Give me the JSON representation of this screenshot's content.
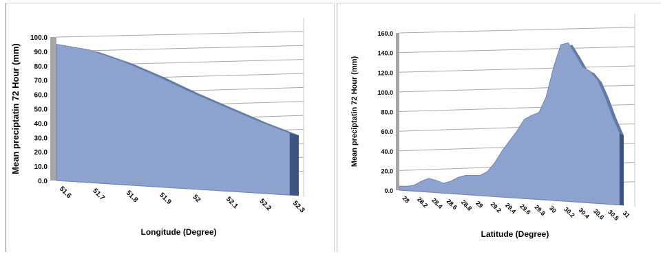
{
  "chart_data": [
    {
      "type": "area",
      "xlabel": "Longitude (Degree)",
      "ylabel": "Mean preciptatin 72 Hour (mm)",
      "x_tick_labels": [
        "51.6",
        "51.7",
        "51.8",
        "51.9",
        "52",
        "52.1",
        "52.2",
        "52.3"
      ],
      "y_tick_labels": [
        "0.0",
        "10.0",
        "20.0",
        "30.0",
        "40.0",
        "50.0",
        "60.0",
        "70.0",
        "80.0",
        "90.0",
        "100.0"
      ],
      "ylim": [
        0,
        100
      ],
      "x": [
        51.6,
        51.7,
        51.8,
        51.9,
        52.0,
        52.1,
        52.2,
        52.3
      ],
      "values": [
        95,
        91,
        83,
        73,
        62,
        52,
        42,
        33
      ],
      "grid": true,
      "legend": "none",
      "color": "#8da2cc"
    },
    {
      "type": "area",
      "xlabel": "Latitude (Degree)",
      "ylabel": "Mean preciptatin 72 Hour (mm)",
      "x_tick_labels": [
        "28",
        "28.2",
        "28.4",
        "28.6",
        "28.8",
        "29",
        "29.2",
        "29.4",
        "29.6",
        "29.8",
        "30",
        "30.2",
        "30.4",
        "30.6",
        "30.8",
        "31"
      ],
      "y_tick_labels": [
        "0.0",
        "20.0",
        "40.0",
        "60.0",
        "80.0",
        "100.0",
        "120.0",
        "140.0",
        "160.0"
      ],
      "ylim": [
        0,
        160
      ],
      "x": [
        28.0,
        28.1,
        28.2,
        28.3,
        28.4,
        28.5,
        28.6,
        28.7,
        28.8,
        28.9,
        29.0,
        29.1,
        29.2,
        29.3,
        29.4,
        29.5,
        29.6,
        29.7,
        29.8,
        29.9,
        30.0,
        30.1,
        30.2,
        30.3,
        30.4,
        30.5,
        30.6,
        30.7,
        30.8,
        30.9,
        31.0
      ],
      "values": [
        4,
        4,
        5,
        9,
        12,
        10,
        7,
        9,
        13,
        15,
        15,
        15,
        19,
        28,
        40,
        50,
        60,
        72,
        76,
        79,
        95,
        125,
        148,
        150,
        138,
        125,
        121,
        112,
        95,
        75,
        58
      ],
      "grid": true,
      "legend": "none",
      "color": "#8da2cc"
    }
  ]
}
